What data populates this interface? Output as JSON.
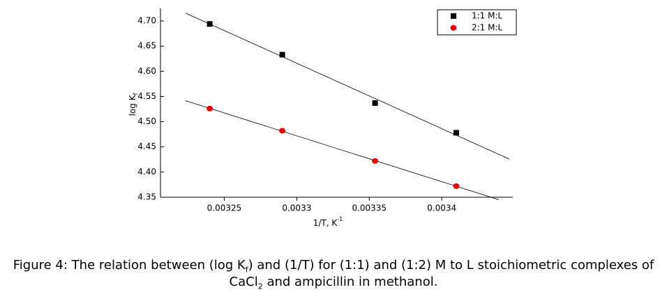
{
  "chart_data": {
    "type": "scatter",
    "x_label": "1/T, K",
    "x_label_sup": "-1",
    "y_label": "log K",
    "y_label_sub": "f",
    "xlim": [
      0.003206,
      0.003449
    ],
    "xticks": [
      0.00325,
      0.0033,
      0.00335,
      0.0034
    ],
    "ylim": [
      4.35,
      4.725
    ],
    "yticks": [
      4.35,
      {
        "value": 4.4,
        "label": "4.40"
      },
      4.45,
      {
        "value": 4.5,
        "label": "4.50"
      },
      4.55,
      {
        "value": 4.6,
        "label": "4.60"
      },
      4.65,
      {
        "value": 4.7,
        "label": "4.70"
      }
    ],
    "x": [
      0.00324,
      0.00329,
      0.003354,
      0.00341
    ],
    "series": [
      {
        "name": "1:1 M:L",
        "color": "#000000",
        "marker": "square",
        "values": [
          4.694,
          4.633,
          4.537,
          4.478
        ]
      },
      {
        "name": "2:1 M:L",
        "color": "#e00000",
        "marker": "circle",
        "values": [
          4.526,
          4.482,
          4.422,
          4.372
        ]
      }
    ],
    "fit_lines": true,
    "legend": "top-right"
  },
  "caption": {
    "line1": [
      "Figure 4: The relation between (log K",
      "f",
      ") and (1/T) for (1:1) and (1:2) M to L stoichiometric complexes of"
    ],
    "line2": [
      "CaCl",
      "2",
      " and ampicillin  in methanol."
    ]
  }
}
